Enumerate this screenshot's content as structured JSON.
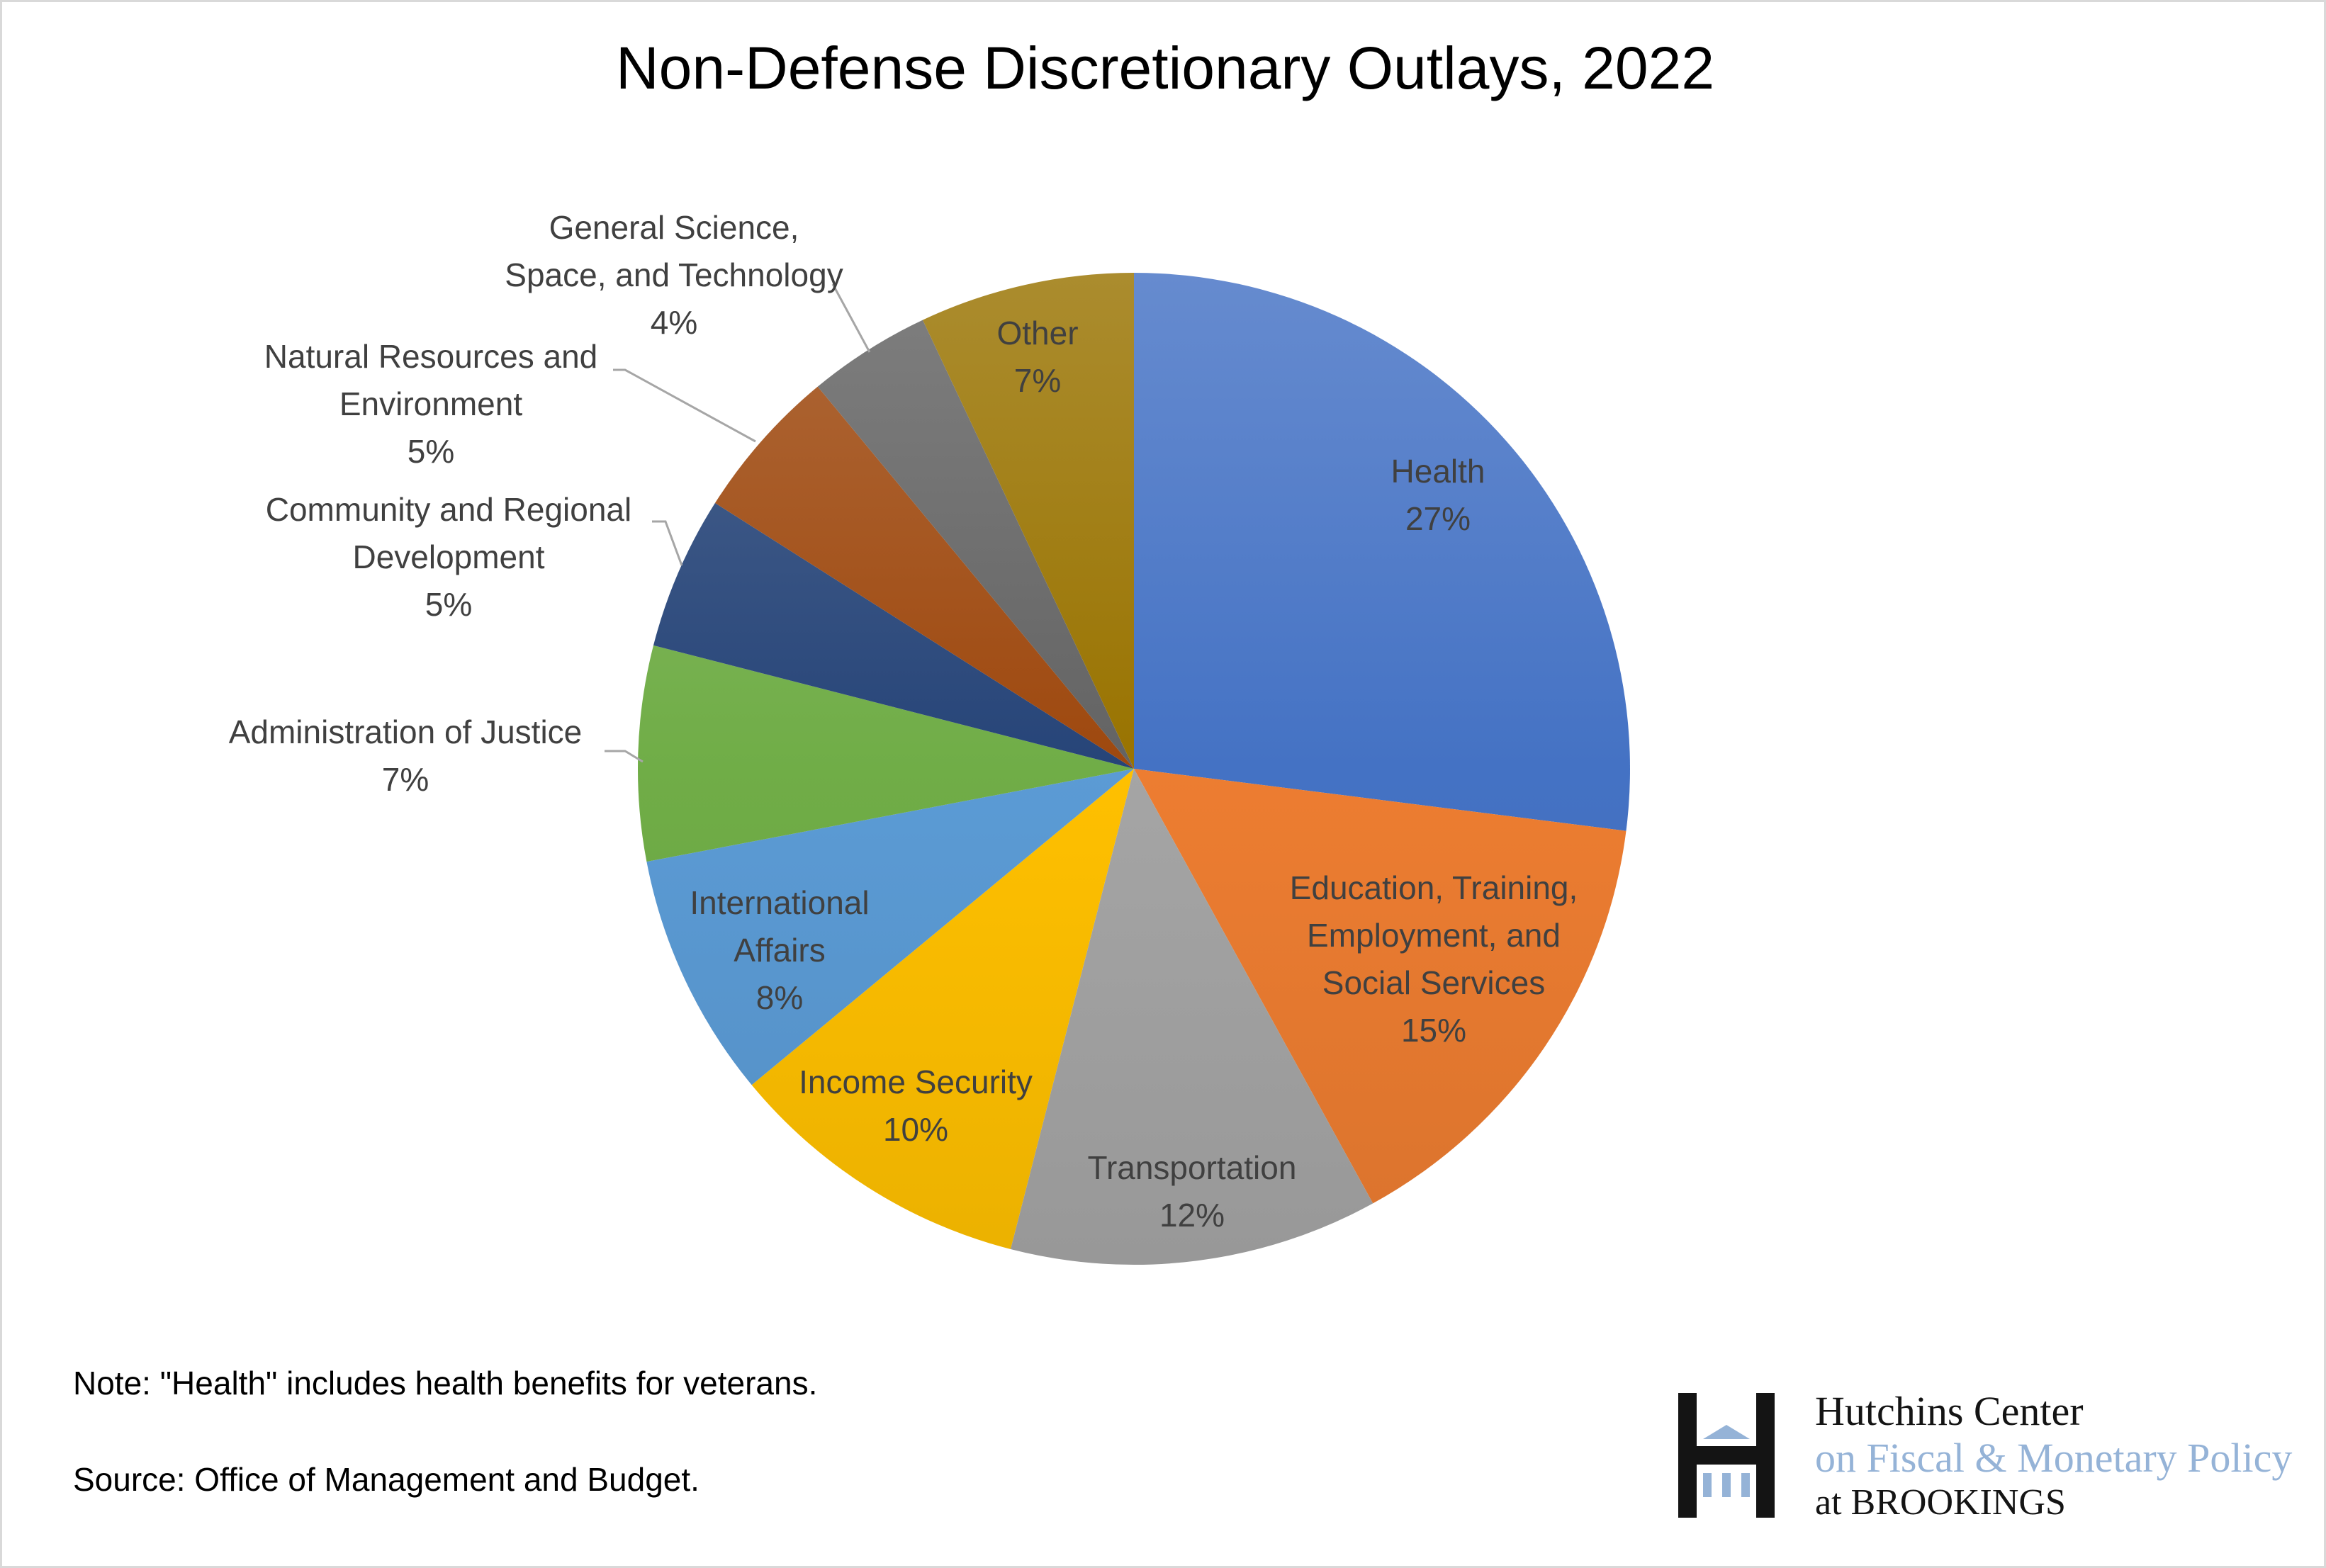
{
  "chart_data": {
    "type": "pie",
    "title": "Non-Defense Discretionary Outlays, 2022",
    "start": "12 o'clock, clockwise",
    "slices": [
      {
        "label": [
          "Health"
        ],
        "value": 27,
        "pct": "27%",
        "color": "#4472c4"
      },
      {
        "label": [
          "Education, Training,",
          "Employment, and",
          "Social Services"
        ],
        "value": 15,
        "pct": "15%",
        "color": "#ed7d31"
      },
      {
        "label": [
          "Transportation"
        ],
        "value": 12,
        "pct": "12%",
        "color": "#a5a5a5"
      },
      {
        "label": [
          "Income Security"
        ],
        "value": 10,
        "pct": "10%",
        "color": "#ffc000"
      },
      {
        "label": [
          "International",
          "Affairs"
        ],
        "value": 8,
        "pct": "8%",
        "color": "#5b9bd5"
      },
      {
        "label": [
          "Administration of Justice"
        ],
        "value": 7,
        "pct": "7%",
        "color": "#70ad47"
      },
      {
        "label": [
          "Community and Regional",
          "Development"
        ],
        "value": 5,
        "pct": "5%",
        "color": "#264478"
      },
      {
        "label": [
          "Natural Resources and",
          "Environment"
        ],
        "value": 5,
        "pct": "5%",
        "color": "#9e480e"
      },
      {
        "label": [
          "General Science,",
          "Space, and Technology"
        ],
        "value": 4,
        "pct": "4%",
        "color": "#636363"
      },
      {
        "label": [
          "Other"
        ],
        "value": 7,
        "pct": "7%",
        "color": "#997300"
      }
    ]
  },
  "notes": {
    "note": "Note: \"Health\" includes health benefits for veterans.",
    "source": "Source: Office of Management and Budget."
  },
  "logo": {
    "line1": "Hutchins Center",
    "line2": "on Fiscal & Monetary Policy",
    "line3": "at BROOKINGS",
    "accent": "#95b3d7"
  }
}
